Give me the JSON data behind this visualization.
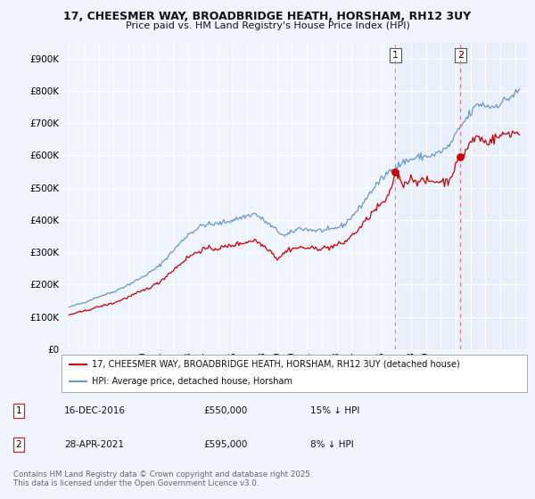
{
  "title_line1": "17, CHEESMER WAY, BROADBRIDGE HEATH, HORSHAM, RH12 3UY",
  "title_line2": "Price paid vs. HM Land Registry's House Price Index (HPI)",
  "background_color": "#f0f4ff",
  "plot_bg_color": "#f0f4ff",
  "hpi_color": "#6699cc",
  "price_color": "#cc0000",
  "ylim": [
    0,
    950000
  ],
  "yticks": [
    0,
    100000,
    200000,
    300000,
    400000,
    500000,
    600000,
    700000,
    800000,
    900000
  ],
  "ytick_labels": [
    "£0",
    "£100K",
    "£200K",
    "£300K",
    "£400K",
    "£500K",
    "£600K",
    "£700K",
    "£800K",
    "£900K"
  ],
  "purchase1_price": 550000,
  "purchase2_price": 595000,
  "legend_line1": "17, CHEESMER WAY, BROADBRIDGE HEATH, HORSHAM, RH12 3UY (detached house)",
  "legend_line2": "HPI: Average price, detached house, Horsham",
  "footer": "Contains HM Land Registry data © Crown copyright and database right 2025.\nThis data is licensed under the Open Government Licence v3.0.",
  "vline1_x": 2016.95,
  "vline2_x": 2021.32,
  "xmin": 1994.5,
  "xmax": 2025.8,
  "hpi_anchors": [
    [
      1995.0,
      130000
    ],
    [
      1996.0,
      145000
    ],
    [
      1997.0,
      163000
    ],
    [
      1998.0,
      178000
    ],
    [
      1999.0,
      200000
    ],
    [
      2000.0,
      225000
    ],
    [
      2001.0,
      255000
    ],
    [
      2002.0,
      305000
    ],
    [
      2003.0,
      355000
    ],
    [
      2004.0,
      385000
    ],
    [
      2005.0,
      388000
    ],
    [
      2006.0,
      400000
    ],
    [
      2007.5,
      420000
    ],
    [
      2008.5,
      385000
    ],
    [
      2009.5,
      350000
    ],
    [
      2010.5,
      375000
    ],
    [
      2011.5,
      368000
    ],
    [
      2012.5,
      368000
    ],
    [
      2013.5,
      385000
    ],
    [
      2014.5,
      435000
    ],
    [
      2015.5,
      500000
    ],
    [
      2016.5,
      550000
    ],
    [
      2017.5,
      580000
    ],
    [
      2018.5,
      595000
    ],
    [
      2019.5,
      600000
    ],
    [
      2020.5,
      625000
    ],
    [
      2021.5,
      700000
    ],
    [
      2022.5,
      760000
    ],
    [
      2023.5,
      750000
    ],
    [
      2024.5,
      775000
    ],
    [
      2025.3,
      800000
    ]
  ],
  "price_anchors": [
    [
      1995.0,
      107000
    ],
    [
      1996.0,
      118000
    ],
    [
      1997.0,
      132000
    ],
    [
      1998.0,
      143000
    ],
    [
      1999.0,
      162000
    ],
    [
      2000.0,
      182000
    ],
    [
      2001.0,
      205000
    ],
    [
      2002.0,
      245000
    ],
    [
      2003.0,
      285000
    ],
    [
      2004.0,
      310000
    ],
    [
      2005.0,
      312000
    ],
    [
      2006.0,
      322000
    ],
    [
      2007.5,
      338000
    ],
    [
      2008.5,
      308000
    ],
    [
      2009.0,
      280000
    ],
    [
      2009.8,
      310000
    ],
    [
      2010.5,
      315000
    ],
    [
      2011.5,
      312000
    ],
    [
      2012.5,
      315000
    ],
    [
      2013.5,
      330000
    ],
    [
      2014.5,
      372000
    ],
    [
      2015.5,
      428000
    ],
    [
      2016.5,
      470000
    ],
    [
      2016.95,
      550000
    ],
    [
      2017.5,
      510000
    ],
    [
      2018.0,
      530000
    ],
    [
      2018.5,
      520000
    ],
    [
      2019.5,
      520000
    ],
    [
      2020.5,
      520000
    ],
    [
      2021.32,
      595000
    ],
    [
      2021.5,
      600000
    ],
    [
      2022.0,
      640000
    ],
    [
      2022.5,
      660000
    ],
    [
      2023.0,
      640000
    ],
    [
      2023.5,
      650000
    ],
    [
      2024.0,
      660000
    ],
    [
      2024.5,
      670000
    ],
    [
      2025.3,
      670000
    ]
  ]
}
